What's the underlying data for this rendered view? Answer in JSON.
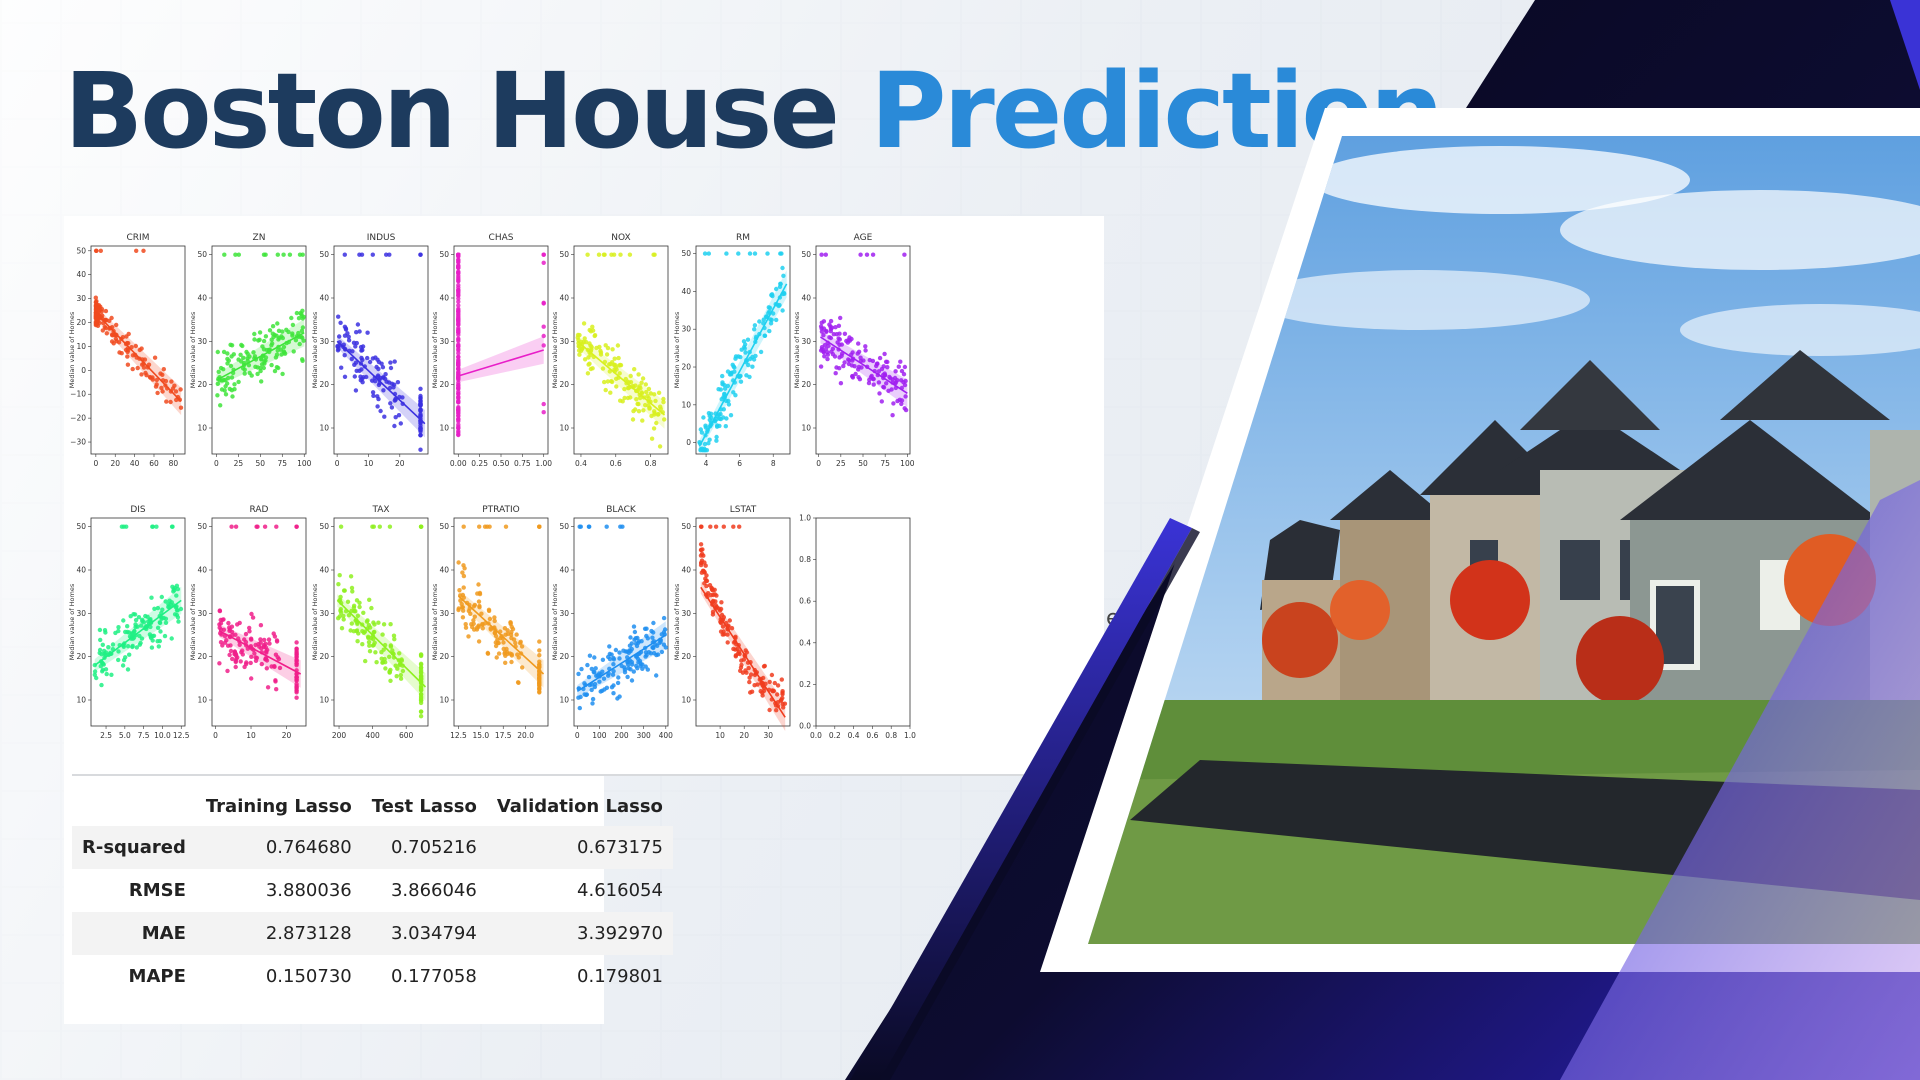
{
  "title": {
    "part1": "Boston House",
    "part2": "Prediction"
  },
  "colors": {
    "title_dark": "#1d3b5e",
    "title_accent": "#2a8ad8",
    "navy": "#0d0c30",
    "purple": "#2a1fb8"
  },
  "stray_text": "erm",
  "chart_data": [
    {
      "type": "scatter",
      "title": "CRIM",
      "ylabel": "Median value of Homes",
      "xlim": [
        -5,
        92
      ],
      "ylim": [
        -35,
        52
      ],
      "xticks": [
        "0",
        "20",
        "40",
        "60",
        "80"
      ],
      "yticks": [
        "50",
        "40",
        "30",
        "20",
        "10",
        "0",
        "−10",
        "−20",
        "−30"
      ],
      "color": "#f04a1e",
      "fit": [
        [
          0,
          24
        ],
        [
          88,
          -13
        ]
      ],
      "trend": "negative"
    },
    {
      "type": "scatter",
      "title": "ZN",
      "ylabel": "Median value of Homes",
      "xlim": [
        -5,
        102
      ],
      "ylim": [
        4,
        52
      ],
      "xticks": [
        "0",
        "25",
        "50",
        "75",
        "100"
      ],
      "yticks": [
        "50",
        "40",
        "30",
        "20",
        "10"
      ],
      "color": "#3ee43a",
      "fit": [
        [
          0,
          21
        ],
        [
          100,
          32
        ]
      ],
      "trend": "positive"
    },
    {
      "type": "scatter",
      "title": "INDUS",
      "ylabel": "Median value of Homes",
      "xlim": [
        -1,
        29
      ],
      "ylim": [
        4,
        52
      ],
      "xticks": [
        "0",
        "10",
        "20"
      ],
      "yticks": [
        "50",
        "40",
        "30",
        "20",
        "10"
      ],
      "color": "#3b30e0",
      "fit": [
        [
          0,
          30
        ],
        [
          28,
          11
        ]
      ],
      "trend": "negative"
    },
    {
      "type": "scatter",
      "title": "CHAS",
      "ylabel": "Median value of Homes",
      "xlim": [
        -0.05,
        1.05
      ],
      "ylim": [
        4,
        52
      ],
      "xticks": [
        "0.00",
        "0.25",
        "0.50",
        "0.75",
        "1.00"
      ],
      "yticks": [
        "50",
        "40",
        "30",
        "20",
        "10"
      ],
      "color": "#e81ec8",
      "fit": [
        [
          0,
          22
        ],
        [
          1,
          28
        ]
      ],
      "trend": "binary"
    },
    {
      "type": "scatter",
      "title": "NOX",
      "ylabel": "Median value of Homes",
      "xlim": [
        0.36,
        0.9
      ],
      "ylim": [
        4,
        52
      ],
      "xticks": [
        "0.4",
        "0.6",
        "0.8"
      ],
      "yticks": [
        "50",
        "40",
        "30",
        "20",
        "10"
      ],
      "color": "#d8f01e",
      "fit": [
        [
          0.38,
          30
        ],
        [
          0.88,
          13
        ]
      ],
      "trend": "negative"
    },
    {
      "type": "scatter",
      "title": "RM",
      "ylabel": "Median value of Homes",
      "xlim": [
        3.4,
        9.0
      ],
      "ylim": [
        -3,
        52
      ],
      "xticks": [
        "4",
        "6",
        "8"
      ],
      "yticks": [
        "50",
        "40",
        "30",
        "20",
        "10",
        "0"
      ],
      "color": "#1ed0f0",
      "fit": [
        [
          3.6,
          -1
        ],
        [
          8.8,
          42
        ]
      ],
      "trend": "positive"
    },
    {
      "type": "scatter",
      "title": "AGE",
      "ylabel": "Median value of Homes",
      "xlim": [
        -3,
        103
      ],
      "ylim": [
        4,
        52
      ],
      "xticks": [
        "0",
        "25",
        "50",
        "75",
        "100"
      ],
      "yticks": [
        "50",
        "40",
        "30",
        "20",
        "10"
      ],
      "color": "#a020f0",
      "fit": [
        [
          2,
          31
        ],
        [
          100,
          18
        ]
      ],
      "trend": "negative"
    },
    {
      "type": "scatter",
      "title": "DIS",
      "ylabel": "Median value of Homes",
      "xlim": [
        0.5,
        13
      ],
      "ylim": [
        4,
        52
      ],
      "xticks": [
        "2.5",
        "5.0",
        "7.5",
        "10.0",
        "12.5"
      ],
      "yticks": [
        "50",
        "40",
        "30",
        "20",
        "10"
      ],
      "color": "#1ef084",
      "fit": [
        [
          1,
          18
        ],
        [
          12.5,
          33
        ]
      ],
      "trend": "positive"
    },
    {
      "type": "scatter",
      "title": "RAD",
      "ylabel": "Median value of Homes",
      "xlim": [
        -1,
        25.5
      ],
      "ylim": [
        4,
        52
      ],
      "xticks": [
        "0",
        "10",
        "20"
      ],
      "yticks": [
        "50",
        "40",
        "30",
        "20",
        "10"
      ],
      "color": "#f01e8a",
      "fit": [
        [
          1,
          26
        ],
        [
          24,
          16
        ]
      ],
      "trend": "negative"
    },
    {
      "type": "scatter",
      "title": "TAX",
      "ylabel": "Median value of Homes",
      "xlim": [
        170,
        730
      ],
      "ylim": [
        4,
        52
      ],
      "xticks": [
        "200",
        "400",
        "600"
      ],
      "yticks": [
        "50",
        "40",
        "30",
        "20",
        "10"
      ],
      "color": "#8ef01e",
      "fit": [
        [
          190,
          33
        ],
        [
          715,
          13
        ]
      ],
      "trend": "negative"
    },
    {
      "type": "scatter",
      "title": "PTRATIO",
      "ylabel": "Median value of Homes",
      "xlim": [
        12,
        22.5
      ],
      "ylim": [
        4,
        52
      ],
      "xticks": [
        "12.5",
        "15.0",
        "17.5",
        "20.0"
      ],
      "yticks": [
        "50",
        "40",
        "30",
        "20",
        "10"
      ],
      "color": "#f09a1e",
      "fit": [
        [
          12.5,
          34
        ],
        [
          22,
          16
        ]
      ],
      "trend": "negative"
    },
    {
      "type": "scatter",
      "title": "BLACK",
      "ylabel": "Median value of Homes",
      "xlim": [
        -15,
        410
      ],
      "ylim": [
        4,
        52
      ],
      "xticks": [
        "0",
        "100",
        "200",
        "300",
        "400"
      ],
      "yticks": [
        "50",
        "40",
        "30",
        "20",
        "10"
      ],
      "color": "#1e8ef0",
      "fit": [
        [
          0,
          12
        ],
        [
          400,
          25
        ]
      ],
      "trend": "positive"
    },
    {
      "type": "scatter",
      "title": "LSTAT",
      "ylabel": "Median value of Homes",
      "xlim": [
        0,
        39
      ],
      "ylim": [
        4,
        52
      ],
      "xticks": [
        "10",
        "20",
        "30"
      ],
      "yticks": [
        "50",
        "40",
        "30",
        "20",
        "10"
      ],
      "color": "#f03c1e",
      "fit": [
        [
          2,
          36
        ],
        [
          37,
          6
        ]
      ],
      "trend": "negative-curve"
    },
    {
      "type": "empty",
      "title": "",
      "xlim": [
        0,
        1
      ],
      "ylim": [
        0,
        1
      ],
      "xticks": [
        "0.0",
        "0.2",
        "0.4",
        "0.6",
        "0.8",
        "1.0"
      ],
      "yticks": [
        "1.0",
        "0.8",
        "0.6",
        "0.4",
        "0.2",
        "0.0"
      ]
    },
    {
      "type": "table",
      "columns": [
        "",
        "Training Lasso",
        "Test Lasso",
        "Validation Lasso"
      ],
      "rows": [
        [
          "R-squared",
          "0.764680",
          "0.705216",
          "0.673175"
        ],
        [
          "RMSE",
          "3.880036",
          "3.866046",
          "4.616054"
        ],
        [
          "MAE",
          "2.873128",
          "3.034794",
          "3.392970"
        ],
        [
          "MAPE",
          "0.150730",
          "0.177058",
          "0.179801"
        ]
      ]
    }
  ]
}
